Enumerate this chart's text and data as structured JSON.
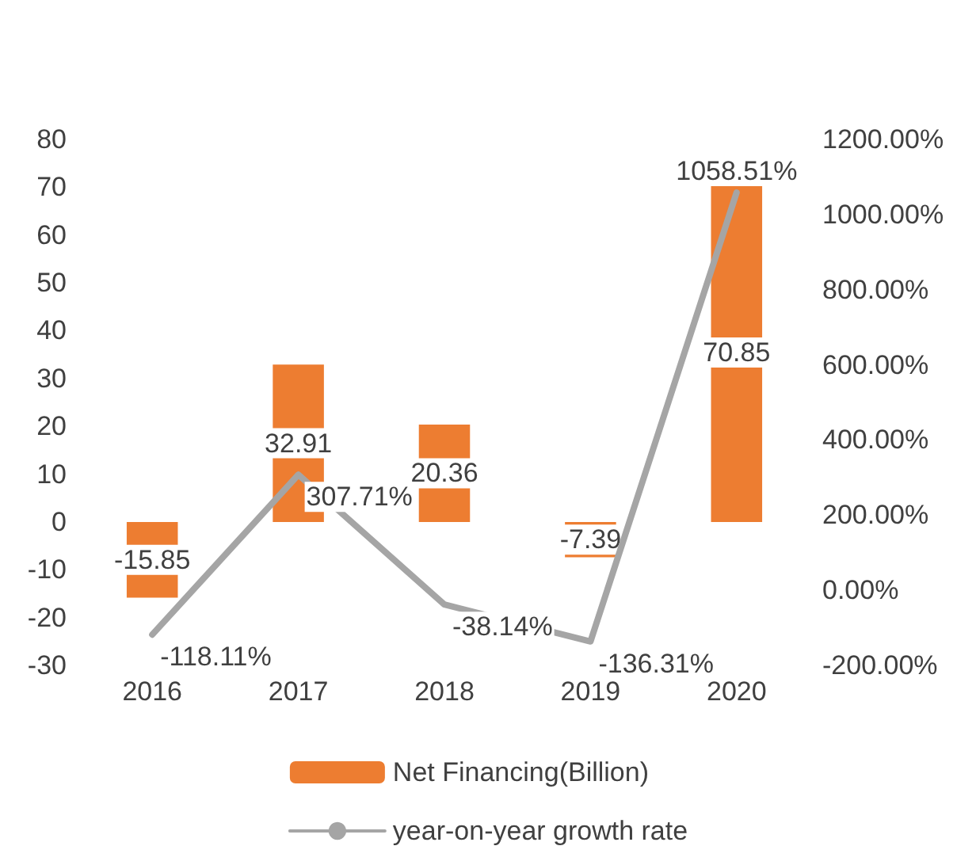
{
  "chart_data": {
    "type": "bar",
    "categories": [
      "2016",
      "2017",
      "2018",
      "2019",
      "2020"
    ],
    "series": [
      {
        "name": "Net Financing(Billion)",
        "color": "#ed7d31",
        "values": [
          -15.85,
          32.91,
          20.36,
          -7.39,
          70.85
        ],
        "value_labels": [
          "-15.85",
          "32.91",
          "20.36",
          "-7.39",
          "70.85"
        ]
      },
      {
        "name": "year-on-year growth rate",
        "type": "line",
        "axis": "y2",
        "color": "#a5a5a5",
        "values": [
          -118.11,
          307.71,
          -38.14,
          -136.31,
          1058.51
        ],
        "value_labels": [
          "-118.11%",
          "307.71%",
          "-38.14%",
          "-136.31%",
          "1058.51%"
        ]
      }
    ],
    "ylim": [
      -30,
      80
    ],
    "yticks": [
      -30,
      -20,
      -10,
      0,
      10,
      20,
      30,
      40,
      50,
      60,
      70,
      80
    ],
    "y2lim": [
      -200,
      1200
    ],
    "y2ticks": [
      {
        "value": -200,
        "label": "-200.00%"
      },
      {
        "value": 0,
        "label": "0.00%"
      },
      {
        "value": 200,
        "label": "200.00%"
      },
      {
        "value": 400,
        "label": "400.00%"
      },
      {
        "value": 600,
        "label": "600.00%"
      },
      {
        "value": 800,
        "label": "800.00%"
      },
      {
        "value": 1000,
        "label": "1000.00%"
      },
      {
        "value": 1200,
        "label": "1200.00%"
      }
    ],
    "grid": false,
    "legend": "bottom",
    "marker": "none",
    "line_style": "solid"
  }
}
